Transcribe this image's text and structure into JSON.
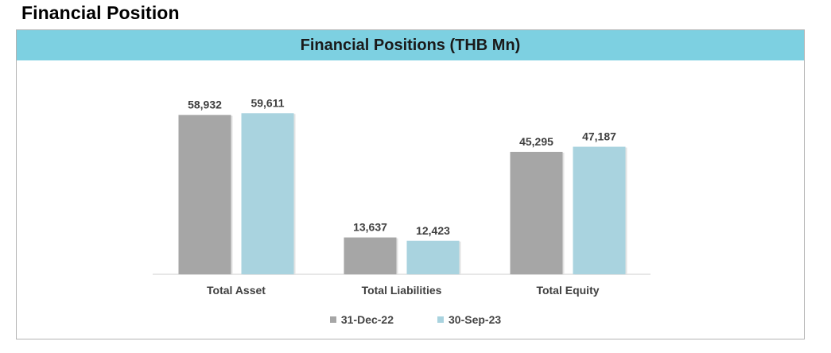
{
  "page": {
    "title": "Financial Position"
  },
  "colors": {
    "header_bg": "#7dd0e1",
    "series_1": "#a6a6a6",
    "series_2": "#a9d3df"
  },
  "chart_data": {
    "type": "bar",
    "title": "Financial Positions (THB Mn)",
    "categories": [
      "Total Asset",
      "Total Liabilities",
      "Total Equity"
    ],
    "series": [
      {
        "name": "31-Dec-22",
        "values": [
          58932,
          13637,
          45295
        ],
        "labels": [
          "58,932",
          "13,637",
          "45,295"
        ]
      },
      {
        "name": "30-Sep-23",
        "values": [
          59611,
          12423,
          47187
        ],
        "labels": [
          "59,611",
          "12,423",
          "47,187"
        ]
      }
    ],
    "ylim": [
      0,
      60000
    ],
    "grid": false,
    "legend": "bottom"
  }
}
